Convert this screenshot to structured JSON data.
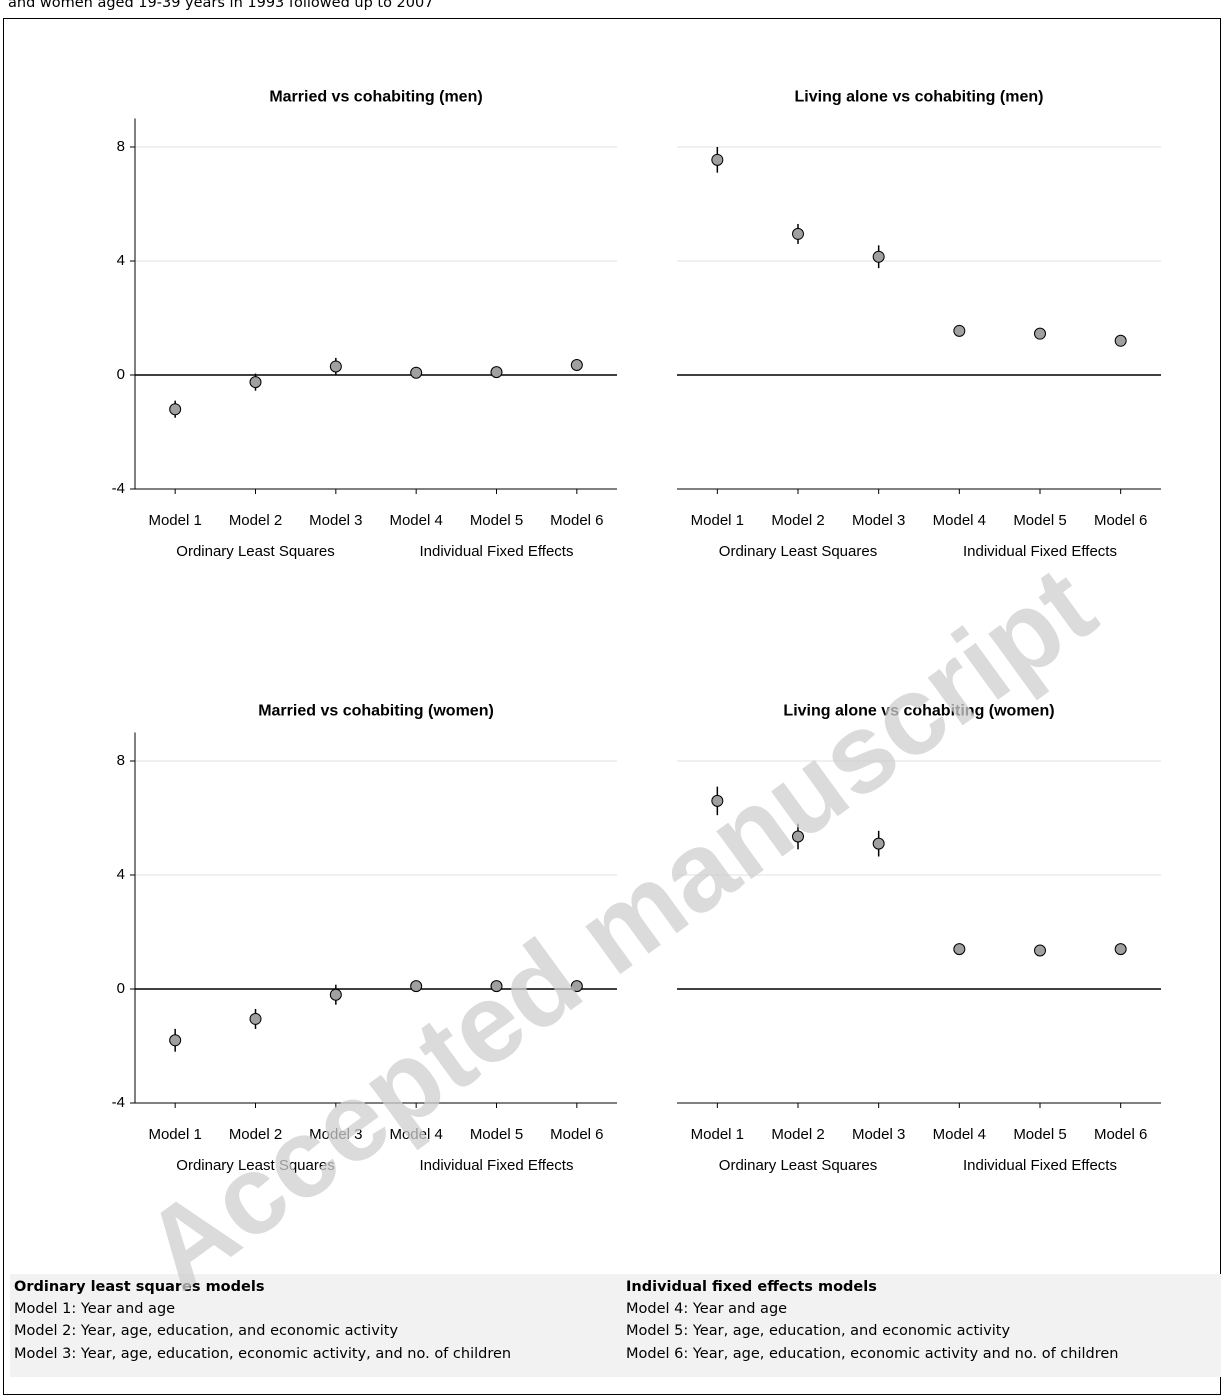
{
  "caption": "and women aged 19-39 years in 1993 followed up to 2007",
  "watermark": "Accepted manuscript",
  "chart_data": [
    {
      "type": "errorbar",
      "title": "Married vs cohabiting (men)",
      "categories": [
        "Model 1",
        "Model 2",
        "Model 3",
        "Model 4",
        "Model 5",
        "Model 6"
      ],
      "groups": [
        "Ordinary Least Squares",
        "Individual Fixed Effects"
      ],
      "values": [
        -1.2,
        -0.25,
        0.3,
        0.08,
        0.1,
        0.35
      ],
      "errors": [
        0.3,
        0.3,
        0.3,
        0.1,
        0.1,
        0.1
      ],
      "color": "#a0a0a0",
      "ylim": [
        -4,
        9
      ],
      "yticks": [
        -4,
        0,
        4,
        8
      ],
      "grid": true,
      "show_y_axis": true
    },
    {
      "type": "errorbar",
      "title": "Living alone vs cohabiting (men)",
      "categories": [
        "Model 1",
        "Model 2",
        "Model 3",
        "Model 4",
        "Model 5",
        "Model 6"
      ],
      "groups": [
        "Ordinary Least Squares",
        "Individual Fixed Effects"
      ],
      "values": [
        7.55,
        4.95,
        4.15,
        1.55,
        1.45,
        1.2
      ],
      "errors": [
        0.45,
        0.35,
        0.4,
        0.1,
        0.1,
        0.1
      ],
      "color": "#a0a0a0",
      "ylim": [
        -4,
        9
      ],
      "yticks": [
        -4,
        0,
        4,
        8
      ],
      "grid": true,
      "show_y_axis": false
    },
    {
      "type": "errorbar",
      "title": "Married vs cohabiting (women)",
      "categories": [
        "Model 1",
        "Model 2",
        "Model 3",
        "Model 4",
        "Model 5",
        "Model 6"
      ],
      "groups": [
        "Ordinary Least Squares",
        "Individual Fixed Effects"
      ],
      "values": [
        -1.8,
        -1.05,
        -0.2,
        0.1,
        0.1,
        0.1
      ],
      "errors": [
        0.4,
        0.35,
        0.35,
        0.2,
        0.2,
        0.2
      ],
      "color": "#a0a0a0",
      "ylim": [
        -4,
        9
      ],
      "yticks": [
        -4,
        0,
        4,
        8
      ],
      "grid": true,
      "show_y_axis": true
    },
    {
      "type": "errorbar",
      "title": "Living alone vs cohabiting (women)",
      "categories": [
        "Model 1",
        "Model 2",
        "Model 3",
        "Model 4",
        "Model 5",
        "Model 6"
      ],
      "groups": [
        "Ordinary Least Squares",
        "Individual Fixed Effects"
      ],
      "values": [
        6.6,
        5.35,
        5.1,
        1.4,
        1.35,
        1.4
      ],
      "errors": [
        0.5,
        0.45,
        0.45,
        0.15,
        0.15,
        0.15
      ],
      "color": "#a0a0a0",
      "ylim": [
        -4,
        9
      ],
      "yticks": [
        -4,
        0,
        4,
        8
      ],
      "grid": true,
      "show_y_axis": false
    }
  ],
  "notes": {
    "left": {
      "title": "Ordinary least squares models",
      "lines": [
        "Model 1: Year and age",
        "Model 2: Year, age, education, and economic activity",
        "Model 3: Year, age, education, economic activity, and no. of children"
      ]
    },
    "right": {
      "title": "Individual fixed effects models",
      "lines": [
        "Model 4: Year and age",
        "Model 5: Year, age, education, and economic activity",
        "Model 6: Year, age, education, economic activity and no. of children"
      ]
    }
  }
}
